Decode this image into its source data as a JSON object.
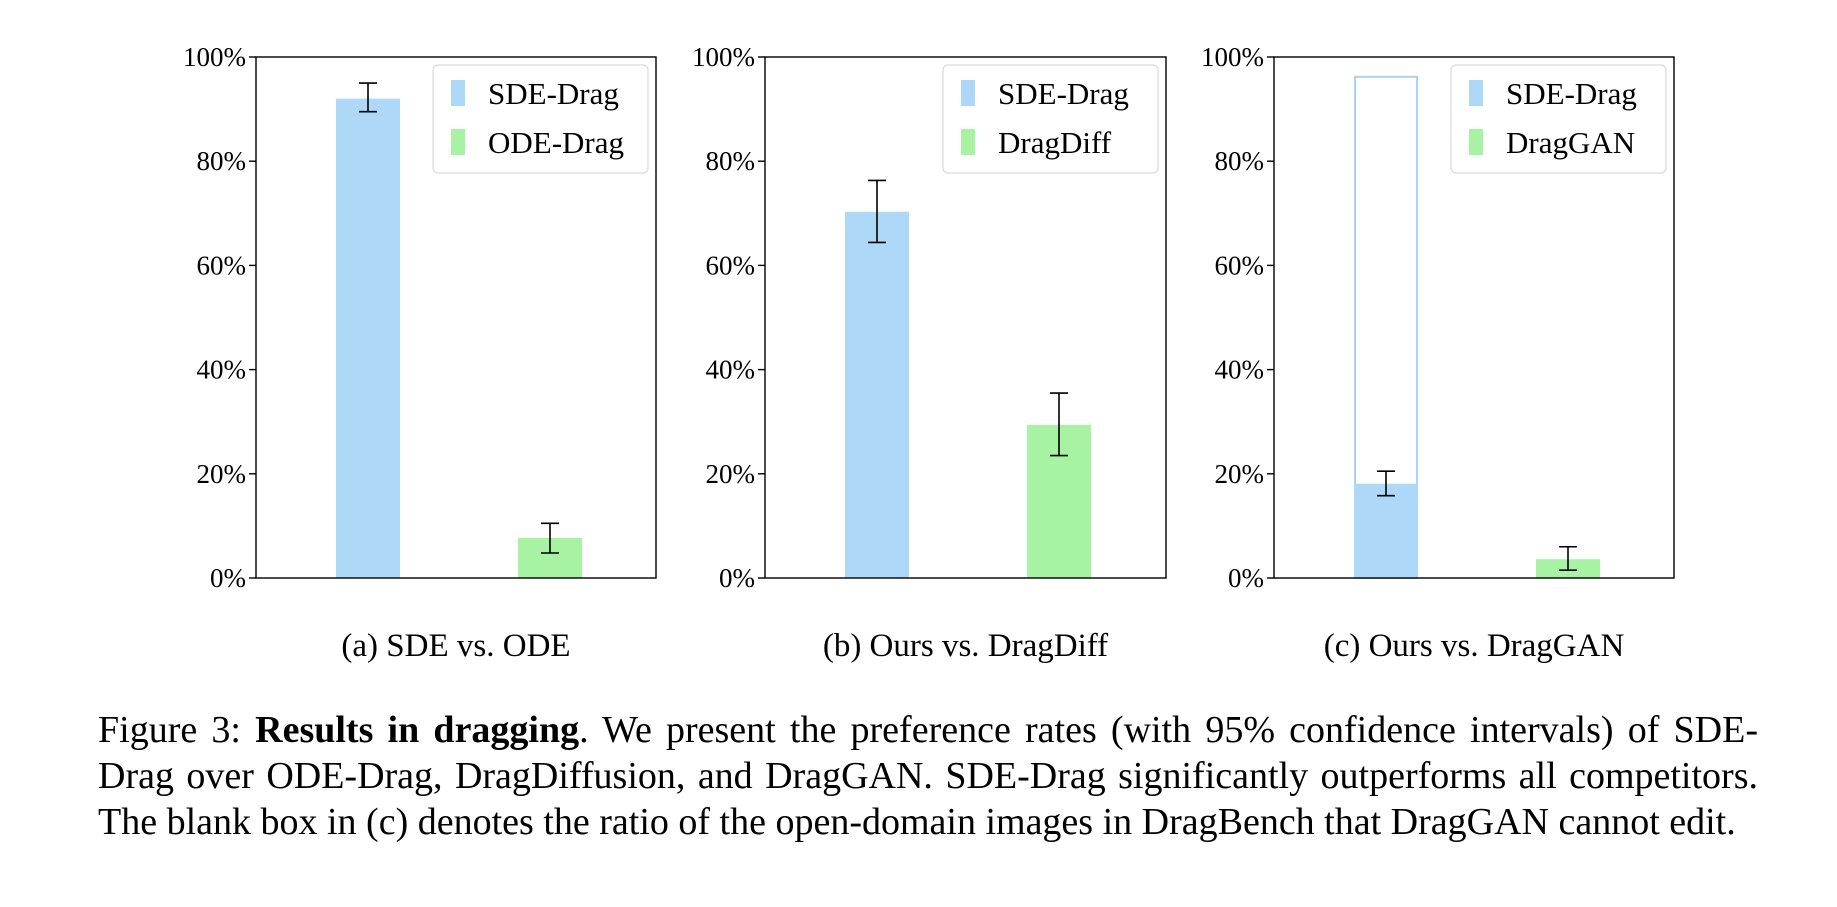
{
  "colors": {
    "sde": "#add8f7",
    "other": "#a7f2a3",
    "axis": "#000000",
    "outline": "#a9d3ee"
  },
  "chart_data": [
    {
      "type": "bar",
      "subcaption": "(a) SDE vs. ODE",
      "series": [
        {
          "name": "SDE-Drag",
          "value": 92.0,
          "err_low": 89.5,
          "err_high": 95.0
        },
        {
          "name": "ODE-Drag",
          "value": 7.7,
          "err_low": 4.8,
          "err_high": 10.5
        }
      ],
      "ylim": [
        0,
        100
      ],
      "yticks": [
        "0%",
        "20%",
        "40%",
        "60%",
        "80%",
        "100%"
      ],
      "legend": "top-right"
    },
    {
      "type": "bar",
      "subcaption": "(b) Ours vs. DragDiff",
      "series": [
        {
          "name": "SDE-Drag",
          "value": 70.3,
          "err_low": 64.4,
          "err_high": 76.3
        },
        {
          "name": "DragDiff",
          "value": 29.4,
          "err_low": 23.5,
          "err_high": 35.5
        }
      ],
      "ylim": [
        0,
        100
      ],
      "yticks": [
        "0%",
        "20%",
        "40%",
        "60%",
        "80%",
        "100%"
      ],
      "legend": "top-right"
    },
    {
      "type": "bar",
      "subcaption": "(c) Ours vs. DragGAN",
      "series": [
        {
          "name": "SDE-Drag",
          "value": 18.1,
          "err_low": 15.8,
          "err_high": 20.5,
          "blank_box": 96.2
        },
        {
          "name": "DragGAN",
          "value": 3.6,
          "err_low": 1.5,
          "err_high": 6.0
        }
      ],
      "ylim": [
        0,
        100
      ],
      "yticks": [
        "0%",
        "20%",
        "40%",
        "60%",
        "80%",
        "100%"
      ],
      "legend": "top-right"
    }
  ],
  "caption": {
    "label": "Figure 3: ",
    "bold": "Results in dragging",
    "text": ". We present the preference rates (with 95% confidence intervals) of SDE-Drag over ODE-Drag, DragDiffusion, and DragGAN. SDE-Drag significantly outperforms all competitors. The blank box in (c) denotes the ratio of the open-domain images in DragBench that DragGAN cannot edit."
  }
}
